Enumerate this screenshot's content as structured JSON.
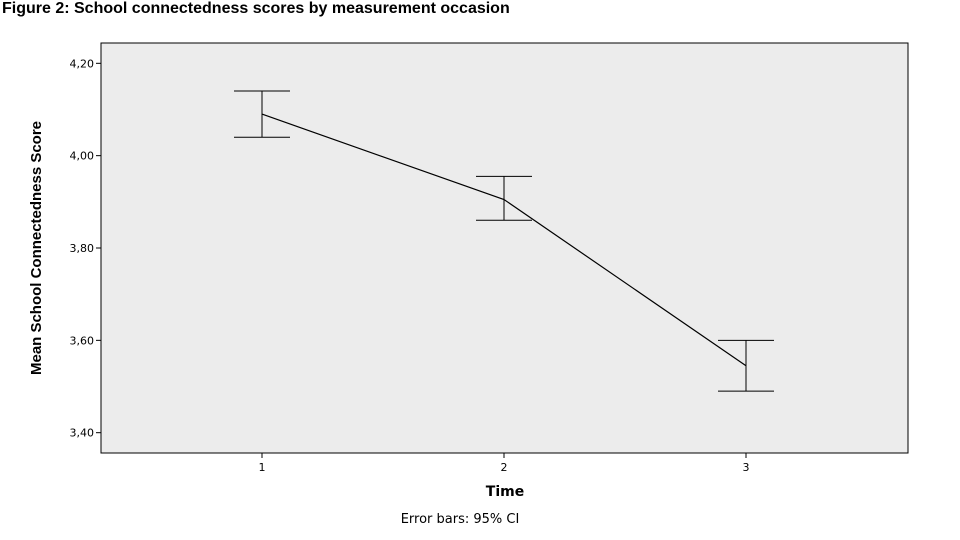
{
  "figure": {
    "title": "Figure 2: School connectedness scores by measurement occasion",
    "footnote": "Error bars: 95% CI"
  },
  "chart_data": {
    "type": "line",
    "title": "Figure 2: School connectedness scores by measurement occasion",
    "xlabel": "Time",
    "ylabel": "Mean School Connectedness Score",
    "categories": [
      "1",
      "2",
      "3"
    ],
    "series": [
      {
        "values": [
          4.09,
          3.905,
          3.545
        ],
        "ci_lower": [
          4.04,
          3.86,
          3.49
        ],
        "ci_upper": [
          4.14,
          3.955,
          3.6
        ]
      }
    ],
    "yticks": [
      "4,20",
      "4,00",
      "3,80",
      "3,60",
      "3,40"
    ],
    "ytick_values": [
      4.2,
      4.0,
      3.8,
      3.6,
      3.4
    ],
    "ylim": [
      3.356,
      4.244
    ],
    "grid": false,
    "error_bars": "95% CI",
    "colors": {
      "plot_background": "#ececec",
      "line": "#000000"
    }
  }
}
